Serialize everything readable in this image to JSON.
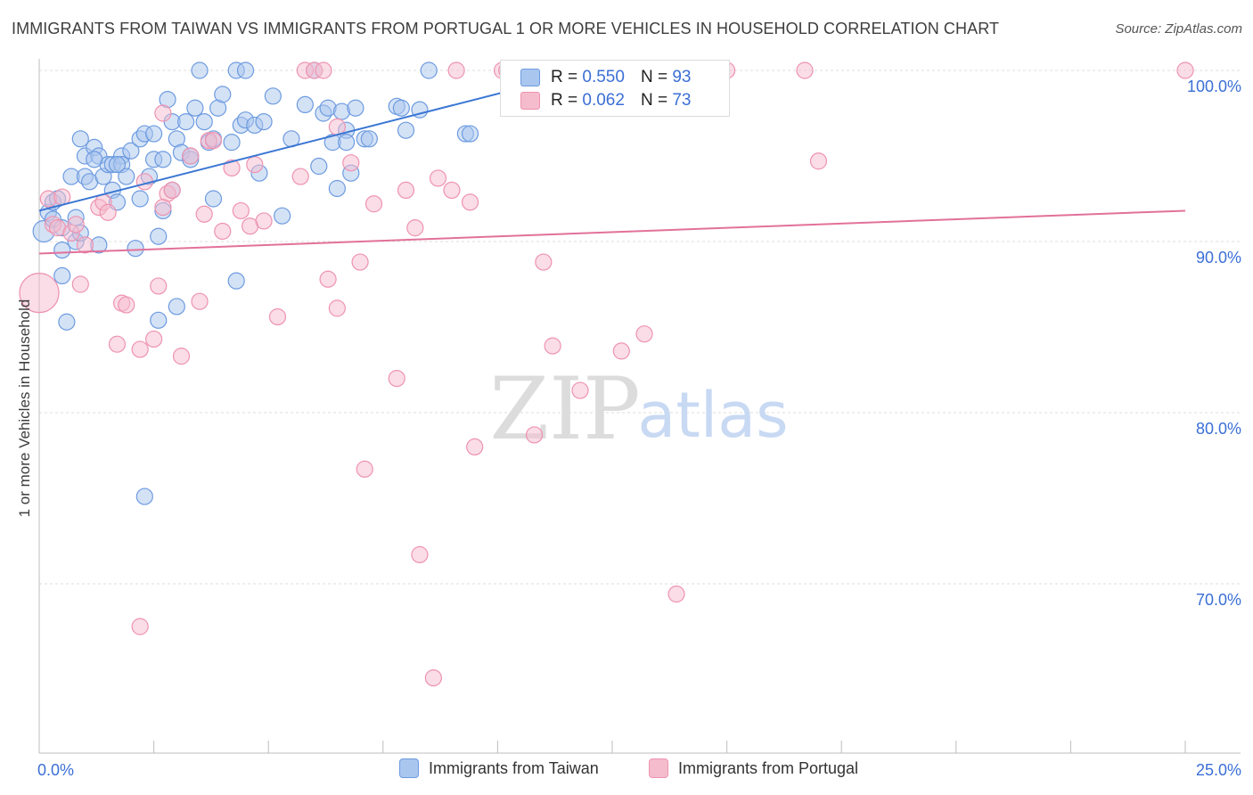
{
  "header": {
    "title": "IMMIGRANTS FROM TAIWAN VS IMMIGRANTS FROM PORTUGAL 1 OR MORE VEHICLES IN HOUSEHOLD CORRELATION CHART",
    "source": "Source: ZipAtlas.com"
  },
  "legend": {
    "r_label": "R =",
    "n_label": "N =",
    "taiwan": {
      "r": "0.550",
      "n": "93"
    },
    "portugal": {
      "r": "0.062",
      "n": "73"
    }
  },
  "bottom_legend": {
    "taiwan": "Immigrants from Taiwan",
    "portugal": "Immigrants from Portugal"
  },
  "watermark": {
    "zip": "ZIP",
    "atlas": "atlas"
  },
  "colors": {
    "taiwan_fill": "#a9c6ee",
    "taiwan_stroke": "#6d9be0",
    "taiwan_line": "#3a76d3",
    "portugal_fill": "#f5bccd",
    "portugal_stroke": "#ee93b0",
    "portugal_line": "#e2719a",
    "tick_label": "#3b6fd6",
    "grid": "#dddddd"
  },
  "chart_data": {
    "type": "scatter",
    "title": "IMMIGRANTS FROM TAIWAN VS IMMIGRANTS FROM PORTUGAL 1 OR MORE VEHICLES IN HOUSEHOLD CORRELATION CHART",
    "xlabel": "",
    "ylabel": "1 or more Vehicles in Household",
    "xlim": [
      0,
      25
    ],
    "ylim": [
      60,
      101
    ],
    "x_tick_labels": [
      "0.0%",
      "25.0%"
    ],
    "y_ticks": [
      100,
      90,
      80,
      70
    ],
    "y_tick_labels": [
      "100.0%",
      "90.0%",
      "80.0%",
      "70.0%"
    ],
    "grid": true,
    "series": [
      {
        "name": "Immigrants from Taiwan",
        "r": 0.55,
        "n": 93,
        "trendline": {
          "x": [
            0,
            12.0
          ],
          "y": [
            91.8,
            100.0
          ]
        },
        "points": [
          [
            0.1,
            90.6
          ],
          [
            0.2,
            91.7
          ],
          [
            0.3,
            91.3
          ],
          [
            0.3,
            92.3
          ],
          [
            0.4,
            92.5
          ],
          [
            0.5,
            90.8
          ],
          [
            0.5,
            88.0
          ],
          [
            0.5,
            89.5
          ],
          [
            0.6,
            85.3
          ],
          [
            0.7,
            93.8
          ],
          [
            0.8,
            90.0
          ],
          [
            0.8,
            91.4
          ],
          [
            0.9,
            90.5
          ],
          [
            1.0,
            93.8
          ],
          [
            1.0,
            95.0
          ],
          [
            1.1,
            93.5
          ],
          [
            1.2,
            95.5
          ],
          [
            1.3,
            95.0
          ],
          [
            1.3,
            89.8
          ],
          [
            1.4,
            93.8
          ],
          [
            1.5,
            94.5
          ],
          [
            1.6,
            93.0
          ],
          [
            1.6,
            94.5
          ],
          [
            1.7,
            92.3
          ],
          [
            1.8,
            95.0
          ],
          [
            1.8,
            94.5
          ],
          [
            1.9,
            93.8
          ],
          [
            2.0,
            95.3
          ],
          [
            2.1,
            89.6
          ],
          [
            2.2,
            92.5
          ],
          [
            2.2,
            96.0
          ],
          [
            2.3,
            96.3
          ],
          [
            2.4,
            93.8
          ],
          [
            2.5,
            96.3
          ],
          [
            2.5,
            94.8
          ],
          [
            2.6,
            90.3
          ],
          [
            2.6,
            85.4
          ],
          [
            2.7,
            94.8
          ],
          [
            2.7,
            91.8
          ],
          [
            2.8,
            98.3
          ],
          [
            2.9,
            97.0
          ],
          [
            3.0,
            96.0
          ],
          [
            3.0,
            86.2
          ],
          [
            3.1,
            95.2
          ],
          [
            3.2,
            97.0
          ],
          [
            3.3,
            94.8
          ],
          [
            3.3,
            95.0
          ],
          [
            3.4,
            97.8
          ],
          [
            3.5,
            100.0
          ],
          [
            3.6,
            97.0
          ],
          [
            3.7,
            95.8
          ],
          [
            3.8,
            96.0
          ],
          [
            3.9,
            97.8
          ],
          [
            4.0,
            98.6
          ],
          [
            4.2,
            95.8
          ],
          [
            4.3,
            87.7
          ],
          [
            4.3,
            100.0
          ],
          [
            4.4,
            96.8
          ],
          [
            4.5,
            97.1
          ],
          [
            4.5,
            100.0
          ],
          [
            4.7,
            96.8
          ],
          [
            4.8,
            94.0
          ],
          [
            4.9,
            97.0
          ],
          [
            5.1,
            98.5
          ],
          [
            5.5,
            96.0
          ],
          [
            5.8,
            98.0
          ],
          [
            6.0,
            100.0
          ],
          [
            6.2,
            97.5
          ],
          [
            6.3,
            97.8
          ],
          [
            6.4,
            95.8
          ],
          [
            6.5,
            93.1
          ],
          [
            6.6,
            97.6
          ],
          [
            6.7,
            96.5
          ],
          [
            6.7,
            95.8
          ],
          [
            6.8,
            94.0
          ],
          [
            6.9,
            97.8
          ],
          [
            7.1,
            96.0
          ],
          [
            7.2,
            96.0
          ],
          [
            7.8,
            97.9
          ],
          [
            7.9,
            97.8
          ],
          [
            8.0,
            96.5
          ],
          [
            8.3,
            97.7
          ],
          [
            8.5,
            100.0
          ],
          [
            9.3,
            96.3
          ],
          [
            9.4,
            96.3
          ],
          [
            1.7,
            94.5
          ],
          [
            2.3,
            75.1
          ],
          [
            0.9,
            96.0
          ],
          [
            1.2,
            94.8
          ],
          [
            2.9,
            93.0
          ],
          [
            3.8,
            92.5
          ],
          [
            5.3,
            91.5
          ],
          [
            6.1,
            94.4
          ]
        ]
      },
      {
        "name": "Immigrants from Portugal",
        "r": 0.062,
        "n": 73,
        "trendline": {
          "x": [
            0,
            25
          ],
          "y": [
            89.3,
            91.8
          ]
        },
        "points": [
          [
            0.0,
            87.0
          ],
          [
            0.2,
            92.5
          ],
          [
            0.3,
            91.0
          ],
          [
            0.4,
            90.8
          ],
          [
            0.5,
            92.6
          ],
          [
            0.7,
            90.5
          ],
          [
            0.8,
            91.0
          ],
          [
            0.9,
            87.5
          ],
          [
            1.0,
            89.8
          ],
          [
            1.3,
            92.0
          ],
          [
            1.4,
            92.3
          ],
          [
            1.5,
            91.7
          ],
          [
            1.7,
            84.0
          ],
          [
            1.8,
            86.4
          ],
          [
            1.9,
            86.3
          ],
          [
            2.2,
            67.5
          ],
          [
            2.2,
            83.7
          ],
          [
            2.3,
            93.5
          ],
          [
            2.5,
            84.3
          ],
          [
            2.6,
            87.4
          ],
          [
            2.7,
            97.5
          ],
          [
            2.8,
            92.8
          ],
          [
            2.9,
            93.0
          ],
          [
            3.1,
            83.3
          ],
          [
            3.3,
            95.0
          ],
          [
            3.5,
            86.5
          ],
          [
            3.6,
            91.6
          ],
          [
            3.7,
            95.9
          ],
          [
            3.8,
            95.9
          ],
          [
            4.0,
            90.6
          ],
          [
            4.2,
            94.3
          ],
          [
            4.4,
            91.8
          ],
          [
            4.6,
            90.9
          ],
          [
            4.7,
            94.5
          ],
          [
            4.9,
            91.2
          ],
          [
            5.2,
            85.6
          ],
          [
            5.7,
            93.8
          ],
          [
            5.8,
            100.0
          ],
          [
            6.0,
            100.0
          ],
          [
            6.2,
            100.0
          ],
          [
            6.3,
            87.8
          ],
          [
            6.5,
            86.1
          ],
          [
            6.5,
            96.7
          ],
          [
            6.8,
            94.6
          ],
          [
            7.0,
            88.8
          ],
          [
            7.1,
            76.7
          ],
          [
            7.3,
            92.2
          ],
          [
            7.8,
            82.0
          ],
          [
            8.0,
            93.0
          ],
          [
            8.2,
            90.8
          ],
          [
            8.3,
            71.7
          ],
          [
            8.6,
            64.5
          ],
          [
            8.7,
            93.7
          ],
          [
            9.0,
            93.0
          ],
          [
            9.1,
            100.0
          ],
          [
            9.4,
            92.3
          ],
          [
            9.5,
            78.0
          ],
          [
            10.1,
            100.0
          ],
          [
            10.2,
            100.0
          ],
          [
            10.8,
            78.7
          ],
          [
            11.0,
            88.8
          ],
          [
            11.2,
            83.9
          ],
          [
            11.8,
            81.3
          ],
          [
            12.0,
            98.5
          ],
          [
            12.1,
            100.0
          ],
          [
            12.7,
            83.6
          ],
          [
            13.2,
            84.6
          ],
          [
            13.9,
            69.4
          ],
          [
            15.0,
            100.0
          ],
          [
            16.7,
            100.0
          ],
          [
            17.0,
            94.7
          ],
          [
            25.0,
            100.0
          ],
          [
            2.7,
            92.0
          ]
        ]
      }
    ]
  }
}
